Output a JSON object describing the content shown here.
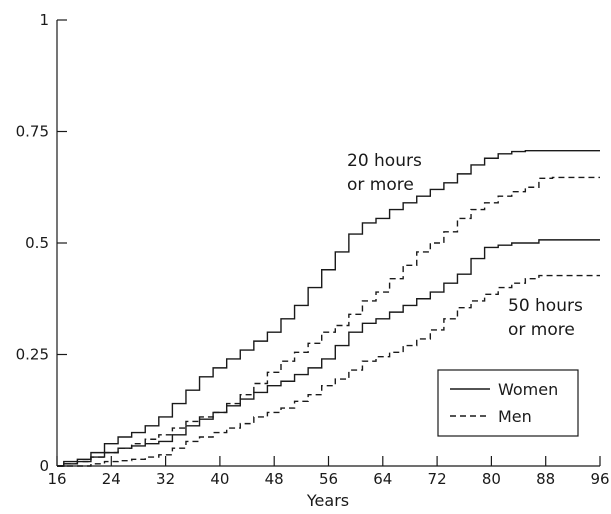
{
  "chart_data": {
    "type": "line",
    "title": "",
    "xlabel": "Years",
    "ylabel": "",
    "xlim": [
      16,
      96
    ],
    "ylim": [
      0,
      1
    ],
    "x_ticks": [
      16,
      24,
      32,
      40,
      48,
      56,
      64,
      72,
      80,
      88,
      96
    ],
    "y_ticks": [
      0,
      0.25,
      0.5,
      0.75,
      1
    ],
    "y_tick_labels": [
      "0",
      "0.25",
      "0.5",
      "0.75",
      "1"
    ],
    "grid": false,
    "legend_position": "lower-right",
    "legend": [
      {
        "label": "Women",
        "style": "solid"
      },
      {
        "label": "Men",
        "style": "dashed"
      }
    ],
    "annotations": [
      {
        "lines": [
          "20 hours",
          "or more"
        ]
      },
      {
        "lines": [
          "50 hours",
          "or more"
        ]
      }
    ],
    "series": [
      {
        "group": "20 hours or more",
        "sex": "Women",
        "style": "solid",
        "x": [
          16,
          18,
          20,
          22,
          24,
          26,
          28,
          30,
          32,
          34,
          36,
          38,
          40,
          42,
          44,
          46,
          48,
          50,
          52,
          54,
          56,
          58,
          60,
          62,
          64,
          66,
          68,
          70,
          72,
          74,
          76,
          78,
          80,
          82,
          84,
          86,
          88,
          90,
          92,
          94,
          96
        ],
        "y": [
          0,
          0.01,
          0.015,
          0.03,
          0.05,
          0.065,
          0.075,
          0.09,
          0.11,
          0.14,
          0.17,
          0.2,
          0.22,
          0.24,
          0.26,
          0.28,
          0.3,
          0.33,
          0.36,
          0.4,
          0.44,
          0.48,
          0.52,
          0.545,
          0.555,
          0.575,
          0.59,
          0.605,
          0.62,
          0.635,
          0.655,
          0.675,
          0.69,
          0.7,
          0.705,
          0.707,
          0.707,
          0.707,
          0.707,
          0.707,
          0.707
        ]
      },
      {
        "group": "20 hours or more",
        "sex": "Men",
        "style": "dashed",
        "x": [
          16,
          18,
          20,
          22,
          24,
          26,
          28,
          30,
          32,
          34,
          36,
          38,
          40,
          42,
          44,
          46,
          48,
          50,
          52,
          54,
          56,
          58,
          60,
          62,
          64,
          66,
          68,
          70,
          72,
          74,
          76,
          78,
          80,
          82,
          84,
          86,
          88,
          90,
          92,
          94,
          96
        ],
        "y": [
          0,
          0.005,
          0.01,
          0.02,
          0.03,
          0.04,
          0.05,
          0.06,
          0.07,
          0.085,
          0.1,
          0.11,
          0.12,
          0.14,
          0.16,
          0.185,
          0.21,
          0.235,
          0.255,
          0.275,
          0.3,
          0.315,
          0.34,
          0.37,
          0.39,
          0.42,
          0.45,
          0.48,
          0.5,
          0.525,
          0.555,
          0.575,
          0.59,
          0.605,
          0.615,
          0.625,
          0.645,
          0.647,
          0.647,
          0.647,
          0.647
        ]
      },
      {
        "group": "50 hours or more",
        "sex": "Women",
        "style": "solid",
        "x": [
          16,
          18,
          20,
          22,
          24,
          26,
          28,
          30,
          32,
          34,
          36,
          38,
          40,
          42,
          44,
          46,
          48,
          50,
          52,
          54,
          56,
          58,
          60,
          62,
          64,
          66,
          68,
          70,
          72,
          74,
          76,
          78,
          80,
          82,
          84,
          86,
          88,
          90,
          92,
          94,
          96
        ],
        "y": [
          0,
          0.005,
          0.01,
          0.02,
          0.03,
          0.04,
          0.045,
          0.05,
          0.055,
          0.07,
          0.09,
          0.105,
          0.12,
          0.135,
          0.15,
          0.165,
          0.18,
          0.19,
          0.205,
          0.22,
          0.24,
          0.27,
          0.3,
          0.32,
          0.33,
          0.345,
          0.36,
          0.375,
          0.39,
          0.41,
          0.43,
          0.465,
          0.49,
          0.495,
          0.5,
          0.5,
          0.507,
          0.507,
          0.507,
          0.507,
          0.507
        ]
      },
      {
        "group": "50 hours or more",
        "sex": "Men",
        "style": "dashed",
        "x": [
          16,
          18,
          20,
          22,
          24,
          26,
          28,
          30,
          32,
          34,
          36,
          38,
          40,
          42,
          44,
          46,
          48,
          50,
          52,
          54,
          56,
          58,
          60,
          62,
          64,
          66,
          68,
          70,
          72,
          74,
          76,
          78,
          80,
          82,
          84,
          86,
          88,
          90,
          92,
          94,
          96
        ],
        "y": [
          0,
          0,
          0,
          0.005,
          0.01,
          0.012,
          0.015,
          0.02,
          0.025,
          0.04,
          0.055,
          0.065,
          0.075,
          0.085,
          0.095,
          0.11,
          0.12,
          0.13,
          0.145,
          0.16,
          0.18,
          0.195,
          0.215,
          0.235,
          0.245,
          0.255,
          0.27,
          0.285,
          0.305,
          0.33,
          0.355,
          0.37,
          0.385,
          0.4,
          0.41,
          0.42,
          0.427,
          0.427,
          0.427,
          0.427,
          0.427
        ]
      }
    ]
  }
}
